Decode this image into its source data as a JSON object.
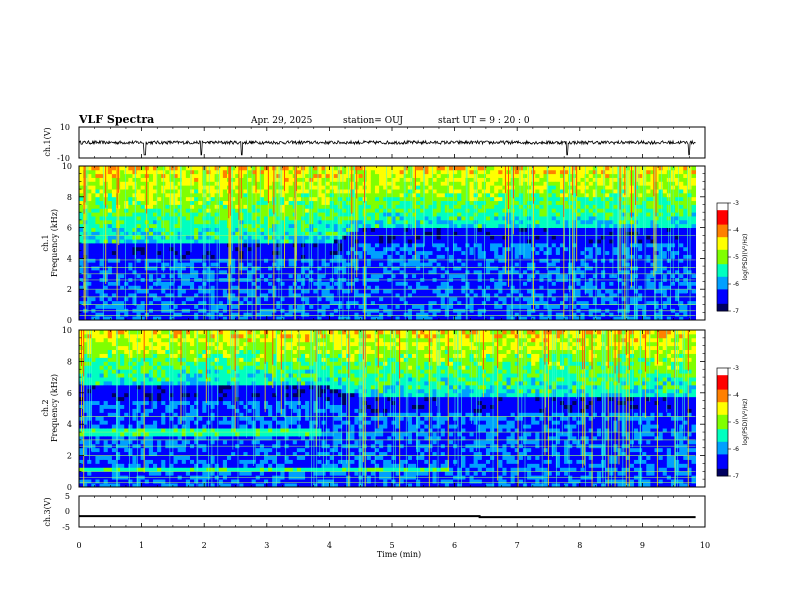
{
  "header": {
    "title": "VLF Spectra",
    "date": "Apr. 29, 2025",
    "station": "station= OUJ",
    "start": "start  UT  =   9  : 20 : 0"
  },
  "chart_data": [
    {
      "type": "line",
      "name": "ch1-waveform",
      "ylabel": "ch.1(V)",
      "yticks": [
        "10",
        "-10"
      ],
      "ylim": [
        -10,
        10
      ],
      "xlim": [
        0,
        10
      ],
      "baseline": 0,
      "spikes_min": [
        1.05,
        1.95,
        2.6,
        7.8,
        9.75
      ]
    },
    {
      "type": "heatmap",
      "name": "ch1-spectrogram",
      "ylabel": "ch.1 Frequency (kHz)",
      "ylabel_ch": "ch.1",
      "ylabel_freq": "Frequency (kHz)",
      "yticks": [
        "0",
        "2",
        "4",
        "6",
        "8",
        "10"
      ],
      "ylim": [
        0,
        10
      ],
      "xlim": [
        0,
        9.85
      ],
      "noise_floor_khz": [
        [
          0,
          5.0
        ],
        [
          4,
          5.0
        ],
        [
          4.5,
          6.0
        ],
        [
          9.85,
          6.0
        ]
      ],
      "lines_khz": [
        0.3,
        0.6,
        1.0,
        1.5,
        2.0,
        2.6,
        3.0,
        3.4,
        3.9,
        5.5
      ],
      "colorbar": {
        "label": "log(PSD)(V²/Hz)",
        "ticks": [
          "-3",
          "-4",
          "-5",
          "-6",
          "-7"
        ],
        "range": [
          -7,
          -3
        ]
      }
    },
    {
      "type": "heatmap",
      "name": "ch2-spectrogram",
      "ylabel": "ch.2 Frequency (kHz)",
      "ylabel_ch": "ch.2",
      "ylabel_freq": "Frequency (kHz)",
      "yticks": [
        "0",
        "2",
        "4",
        "6",
        "8",
        "10"
      ],
      "ylim": [
        0,
        10
      ],
      "xlim": [
        0,
        9.85
      ],
      "noise_floor_khz": [
        [
          0,
          6.5
        ],
        [
          3.9,
          6.5
        ],
        [
          4.5,
          5.8
        ],
        [
          9.85,
          5.8
        ]
      ],
      "bands_khz": [
        [
          0,
          3.9,
          3.3,
          3.7
        ],
        [
          0,
          5.9,
          1.1,
          1.3
        ]
      ],
      "lines_khz": [
        0.3,
        0.6,
        1.0,
        2.0,
        2.6,
        3.0,
        3.5,
        4.5
      ],
      "colorbar": {
        "label": "log(PSD)(V²/Hz)",
        "ticks": [
          "-3",
          "-4",
          "-5",
          "-6",
          "-7"
        ],
        "range": [
          -7,
          -3
        ]
      }
    },
    {
      "type": "line",
      "name": "ch3-voltage",
      "ylabel": "ch.3(V)",
      "yticks": [
        "5",
        "0",
        "-5"
      ],
      "ylim": [
        -5,
        5
      ],
      "xlim": [
        0,
        10
      ],
      "xlabel": "Time  (min)",
      "xticks": [
        "0",
        "1",
        "2",
        "3",
        "4",
        "5",
        "6",
        "7",
        "8",
        "9",
        "10"
      ],
      "x": [
        0,
        6.4,
        6.4,
        9.85
      ],
      "y": [
        -1.5,
        -1.5,
        -1.8,
        -1.8
      ]
    }
  ],
  "colors": {
    "spectrum": [
      "#000060",
      "#0000ff",
      "#00a0ff",
      "#00ffc0",
      "#80ff00",
      "#ffff00",
      "#ff8000",
      "#ff0000",
      "#ffffff"
    ]
  }
}
